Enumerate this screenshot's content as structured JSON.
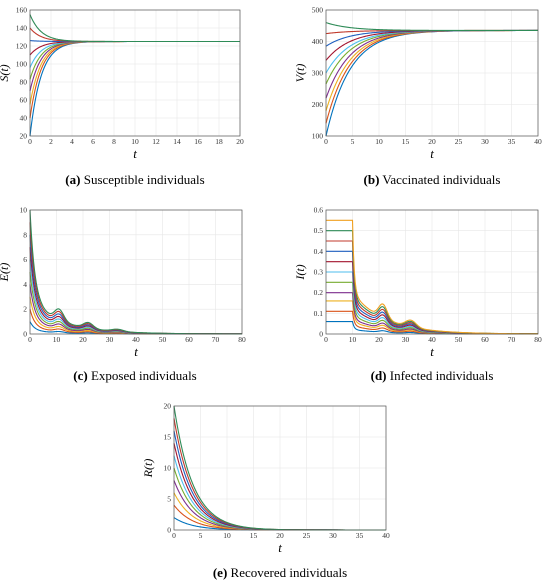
{
  "panels": [
    {
      "label": "(a)",
      "caption": "Susceptible individuals",
      "ylabel": "S(t)",
      "xlabel": "t",
      "xlim": [
        0,
        20
      ],
      "ylim": [
        20,
        160
      ],
      "xticks": [
        0,
        2,
        4,
        6,
        8,
        10,
        12,
        14,
        16,
        18,
        20
      ],
      "yticks": [
        20,
        40,
        60,
        80,
        100,
        120,
        140,
        160
      ],
      "grid": true,
      "type": "line",
      "curves": "converge",
      "initial_values": [
        20,
        40,
        55,
        70,
        83,
        96,
        110,
        126,
        140,
        155
      ],
      "final_value": 125,
      "rate": 0.95
    },
    {
      "label": "(b)",
      "caption": "Vaccinated individuals",
      "ylabel": "V(t)",
      "xlabel": "t",
      "xlim": [
        0,
        40
      ],
      "ylim": [
        100,
        500
      ],
      "xticks": [
        0,
        5,
        10,
        15,
        20,
        25,
        30,
        35,
        40
      ],
      "yticks": [
        100,
        200,
        300,
        400,
        500
      ],
      "grid": true,
      "type": "line",
      "curves": "converge",
      "initial_values": [
        100,
        140,
        180,
        220,
        265,
        300,
        340,
        385,
        425,
        460
      ],
      "final_value": 435,
      "rate": 0.22
    },
    {
      "label": "(c)",
      "caption": "Exposed individuals",
      "ylabel": "E(t)",
      "xlabel": "t",
      "xlim": [
        0,
        80
      ],
      "ylim": [
        0,
        10
      ],
      "xticks": [
        0,
        10,
        20,
        30,
        40,
        50,
        60,
        70,
        80
      ],
      "yticks": [
        0,
        2,
        4,
        6,
        8,
        10
      ],
      "grid": true,
      "type": "line",
      "curves": "decay",
      "initial_values": [
        1,
        2,
        3,
        4,
        5,
        6,
        7,
        8,
        9,
        10
      ]
    },
    {
      "label": "(d)",
      "caption": "Infected individuals",
      "ylabel": "I(t)",
      "xlabel": "t",
      "xlim": [
        0,
        80
      ],
      "ylim": [
        0,
        0.6
      ],
      "xticks": [
        0,
        10,
        20,
        30,
        40,
        50,
        60,
        70,
        80
      ],
      "yticks": [
        0,
        0.1,
        0.2,
        0.3,
        0.4,
        0.5,
        0.6
      ],
      "grid": true,
      "type": "line",
      "curves": "plateau",
      "initial_values": [
        0.06,
        0.11,
        0.16,
        0.2,
        0.25,
        0.3,
        0.35,
        0.4,
        0.45,
        0.5,
        0.55
      ]
    },
    {
      "label": "(e)",
      "caption": "Recovered individuals",
      "ylabel": "R(t)",
      "xlabel": "t",
      "xlim": [
        0,
        40
      ],
      "ylim": [
        0,
        20
      ],
      "xticks": [
        0,
        5,
        10,
        15,
        20,
        25,
        30,
        35,
        40
      ],
      "yticks": [
        0,
        5,
        10,
        15,
        20
      ],
      "grid": true,
      "type": "line",
      "curves": "decay",
      "initial_values": [
        2,
        4,
        6,
        8,
        10,
        12,
        14,
        16,
        18,
        20
      ],
      "rate": 0.28
    }
  ],
  "colors": [
    "#0072BD",
    "#D95319",
    "#EDB120",
    "#7E2F8E",
    "#77AC30",
    "#4DBEEE",
    "#A2142F",
    "#1F5FBF",
    "#C0392B",
    "#2E8B57",
    "#F0A020"
  ],
  "chart_data": [
    {
      "type": "line",
      "title": "",
      "xlabel": "t",
      "ylabel": "S(t)",
      "xlim": [
        0,
        20
      ],
      "ylim": [
        20,
        160
      ],
      "series_initial_values": [
        20,
        40,
        55,
        70,
        83,
        96,
        110,
        126,
        140,
        155
      ],
      "equilibrium": 125
    },
    {
      "type": "line",
      "title": "",
      "xlabel": "t",
      "ylabel": "V(t)",
      "xlim": [
        0,
        40
      ],
      "ylim": [
        100,
        500
      ],
      "series_initial_values": [
        100,
        140,
        180,
        220,
        265,
        300,
        340,
        385,
        425,
        460
      ],
      "equilibrium": 435
    },
    {
      "type": "line",
      "title": "",
      "xlabel": "t",
      "ylabel": "E(t)",
      "xlim": [
        0,
        80
      ],
      "ylim": [
        0,
        10
      ],
      "series_initial_values": [
        1,
        2,
        3,
        4,
        5,
        6,
        7,
        8,
        9,
        10
      ],
      "equilibrium": 0
    },
    {
      "type": "line",
      "title": "",
      "xlabel": "t",
      "ylabel": "I(t)",
      "xlim": [
        0,
        80
      ],
      "ylim": [
        0,
        0.6
      ],
      "series_initial_values": [
        0.06,
        0.11,
        0.16,
        0.2,
        0.25,
        0.3,
        0.35,
        0.4,
        0.45,
        0.5,
        0.55
      ],
      "equilibrium": 0
    },
    {
      "type": "line",
      "title": "",
      "xlabel": "t",
      "ylabel": "R(t)",
      "xlim": [
        0,
        40
      ],
      "ylim": [
        0,
        20
      ],
      "series_initial_values": [
        2,
        4,
        6,
        8,
        10,
        12,
        14,
        16,
        18,
        20
      ],
      "equilibrium": 0
    }
  ]
}
